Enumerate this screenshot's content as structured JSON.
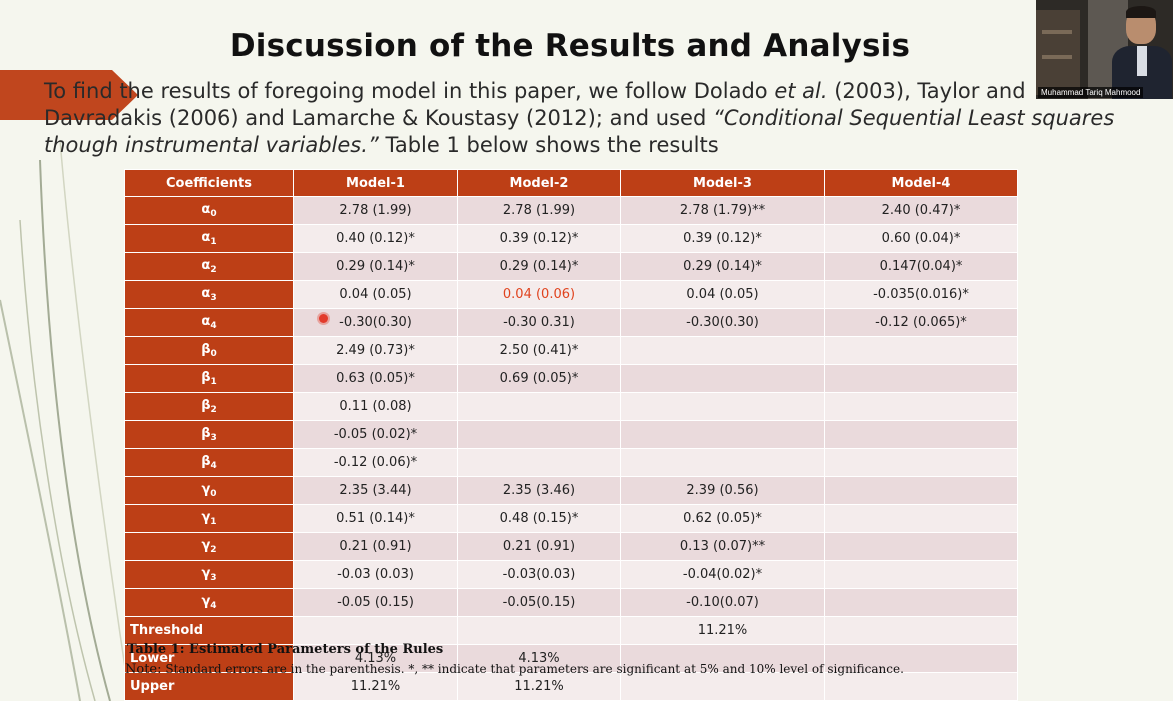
{
  "title": "Discussion of the Results and Analysis",
  "intro": {
    "part1": "To find the results of foregoing model in this paper, we follow Dolado ",
    "etal": "et al.",
    "part2": " (2003), Taylor and Davradakis (2006) and Lamarche & Koustasy (2012); and used ",
    "method": "“Conditional Sequential Least squares though instrumental variables.”",
    "part3": " Table 1 below shows the results"
  },
  "table": {
    "headers": [
      "Coefficients",
      "Model-1",
      "Model-2",
      "Model-3",
      "Model-4"
    ],
    "rows": [
      {
        "sym": "α",
        "sub": "0",
        "cells": [
          "2.78 (1.99)",
          "2.78 (1.99)",
          "2.78 (1.79)**",
          "2.40 (0.47)*"
        ]
      },
      {
        "sym": "α",
        "sub": "1",
        "cells": [
          "0.40 (0.12)*",
          "0.39 (0.12)*",
          "0.39 (0.12)*",
          "0.60 (0.04)*"
        ]
      },
      {
        "sym": "α",
        "sub": "2",
        "cells": [
          "0.29 (0.14)*",
          "0.29 (0.14)*",
          "0.29 (0.14)*",
          "0.147(0.04)*"
        ]
      },
      {
        "sym": "α",
        "sub": "3",
        "cells": [
          "0.04 (0.05)",
          "0.04 (0.06)",
          "0.04 (0.05)",
          "-0.035(0.016)*"
        ]
      },
      {
        "sym": "α",
        "sub": "4",
        "cells": [
          "-0.30(0.30)",
          "-0.30 0.31)",
          "-0.30(0.30)",
          "-0.12 (0.065)*"
        ]
      },
      {
        "sym": "β",
        "sub": "0",
        "cells": [
          "2.49 (0.73)*",
          "2.50 (0.41)*",
          "",
          ""
        ]
      },
      {
        "sym": "β",
        "sub": "1",
        "cells": [
          "0.63 (0.05)*",
          "0.69 (0.05)*",
          "",
          ""
        ]
      },
      {
        "sym": "β",
        "sub": "2",
        "cells": [
          "0.11 (0.08)",
          "",
          "",
          ""
        ]
      },
      {
        "sym": "β",
        "sub": "3",
        "cells": [
          "-0.05 (0.02)*",
          "",
          "",
          ""
        ]
      },
      {
        "sym": "β",
        "sub": "4",
        "cells": [
          "-0.12 (0.06)*",
          "",
          "",
          ""
        ]
      },
      {
        "sym": "γ",
        "sub": "0",
        "cells": [
          "2.35 (3.44)",
          "2.35 (3.46)",
          "2.39 (0.56)",
          ""
        ]
      },
      {
        "sym": "γ",
        "sub": "1",
        "cells": [
          "0.51 (0.14)*",
          "0.48 (0.15)*",
          "0.62 (0.05)*",
          ""
        ]
      },
      {
        "sym": "γ",
        "sub": "2",
        "cells": [
          "0.21 (0.91)",
          "0.21 (0.91)",
          "0.13 (0.07)**",
          ""
        ]
      },
      {
        "sym": "γ",
        "sub": "3",
        "cells": [
          "-0.03 (0.03)",
          "-0.03(0.03)",
          "-0.04(0.02)*",
          ""
        ]
      },
      {
        "sym": "γ",
        "sub": "4",
        "cells": [
          "-0.05 (0.15)",
          "-0.05(0.15)",
          "-0.10(0.07)",
          ""
        ]
      },
      {
        "label": "Threshold",
        "cells": [
          "",
          "",
          "11.21%",
          ""
        ]
      },
      {
        "label": "Lower",
        "cells": [
          "4.13%",
          "4.13%",
          "",
          ""
        ]
      },
      {
        "label": "Upper",
        "cells": [
          "11.21%",
          "11.21%",
          "",
          ""
        ]
      }
    ],
    "highlight": {
      "row": 3,
      "col": 1,
      "color": "#e0431e"
    }
  },
  "caption": "Table 1: Estimated Parameters of the Rules",
  "note": {
    "label": "Note:",
    "text": "Standard errors are in the parenthesis. *, ** indicate that parameters are significant at 5% and 10% level of significance."
  },
  "webcam": {
    "name": "Muhammad Tariq Mahmood"
  },
  "colors": {
    "accent": "#bd3f16",
    "row_odd": "#eadadc",
    "row_even": "#f4ecec",
    "background": "#f5f6ee"
  }
}
